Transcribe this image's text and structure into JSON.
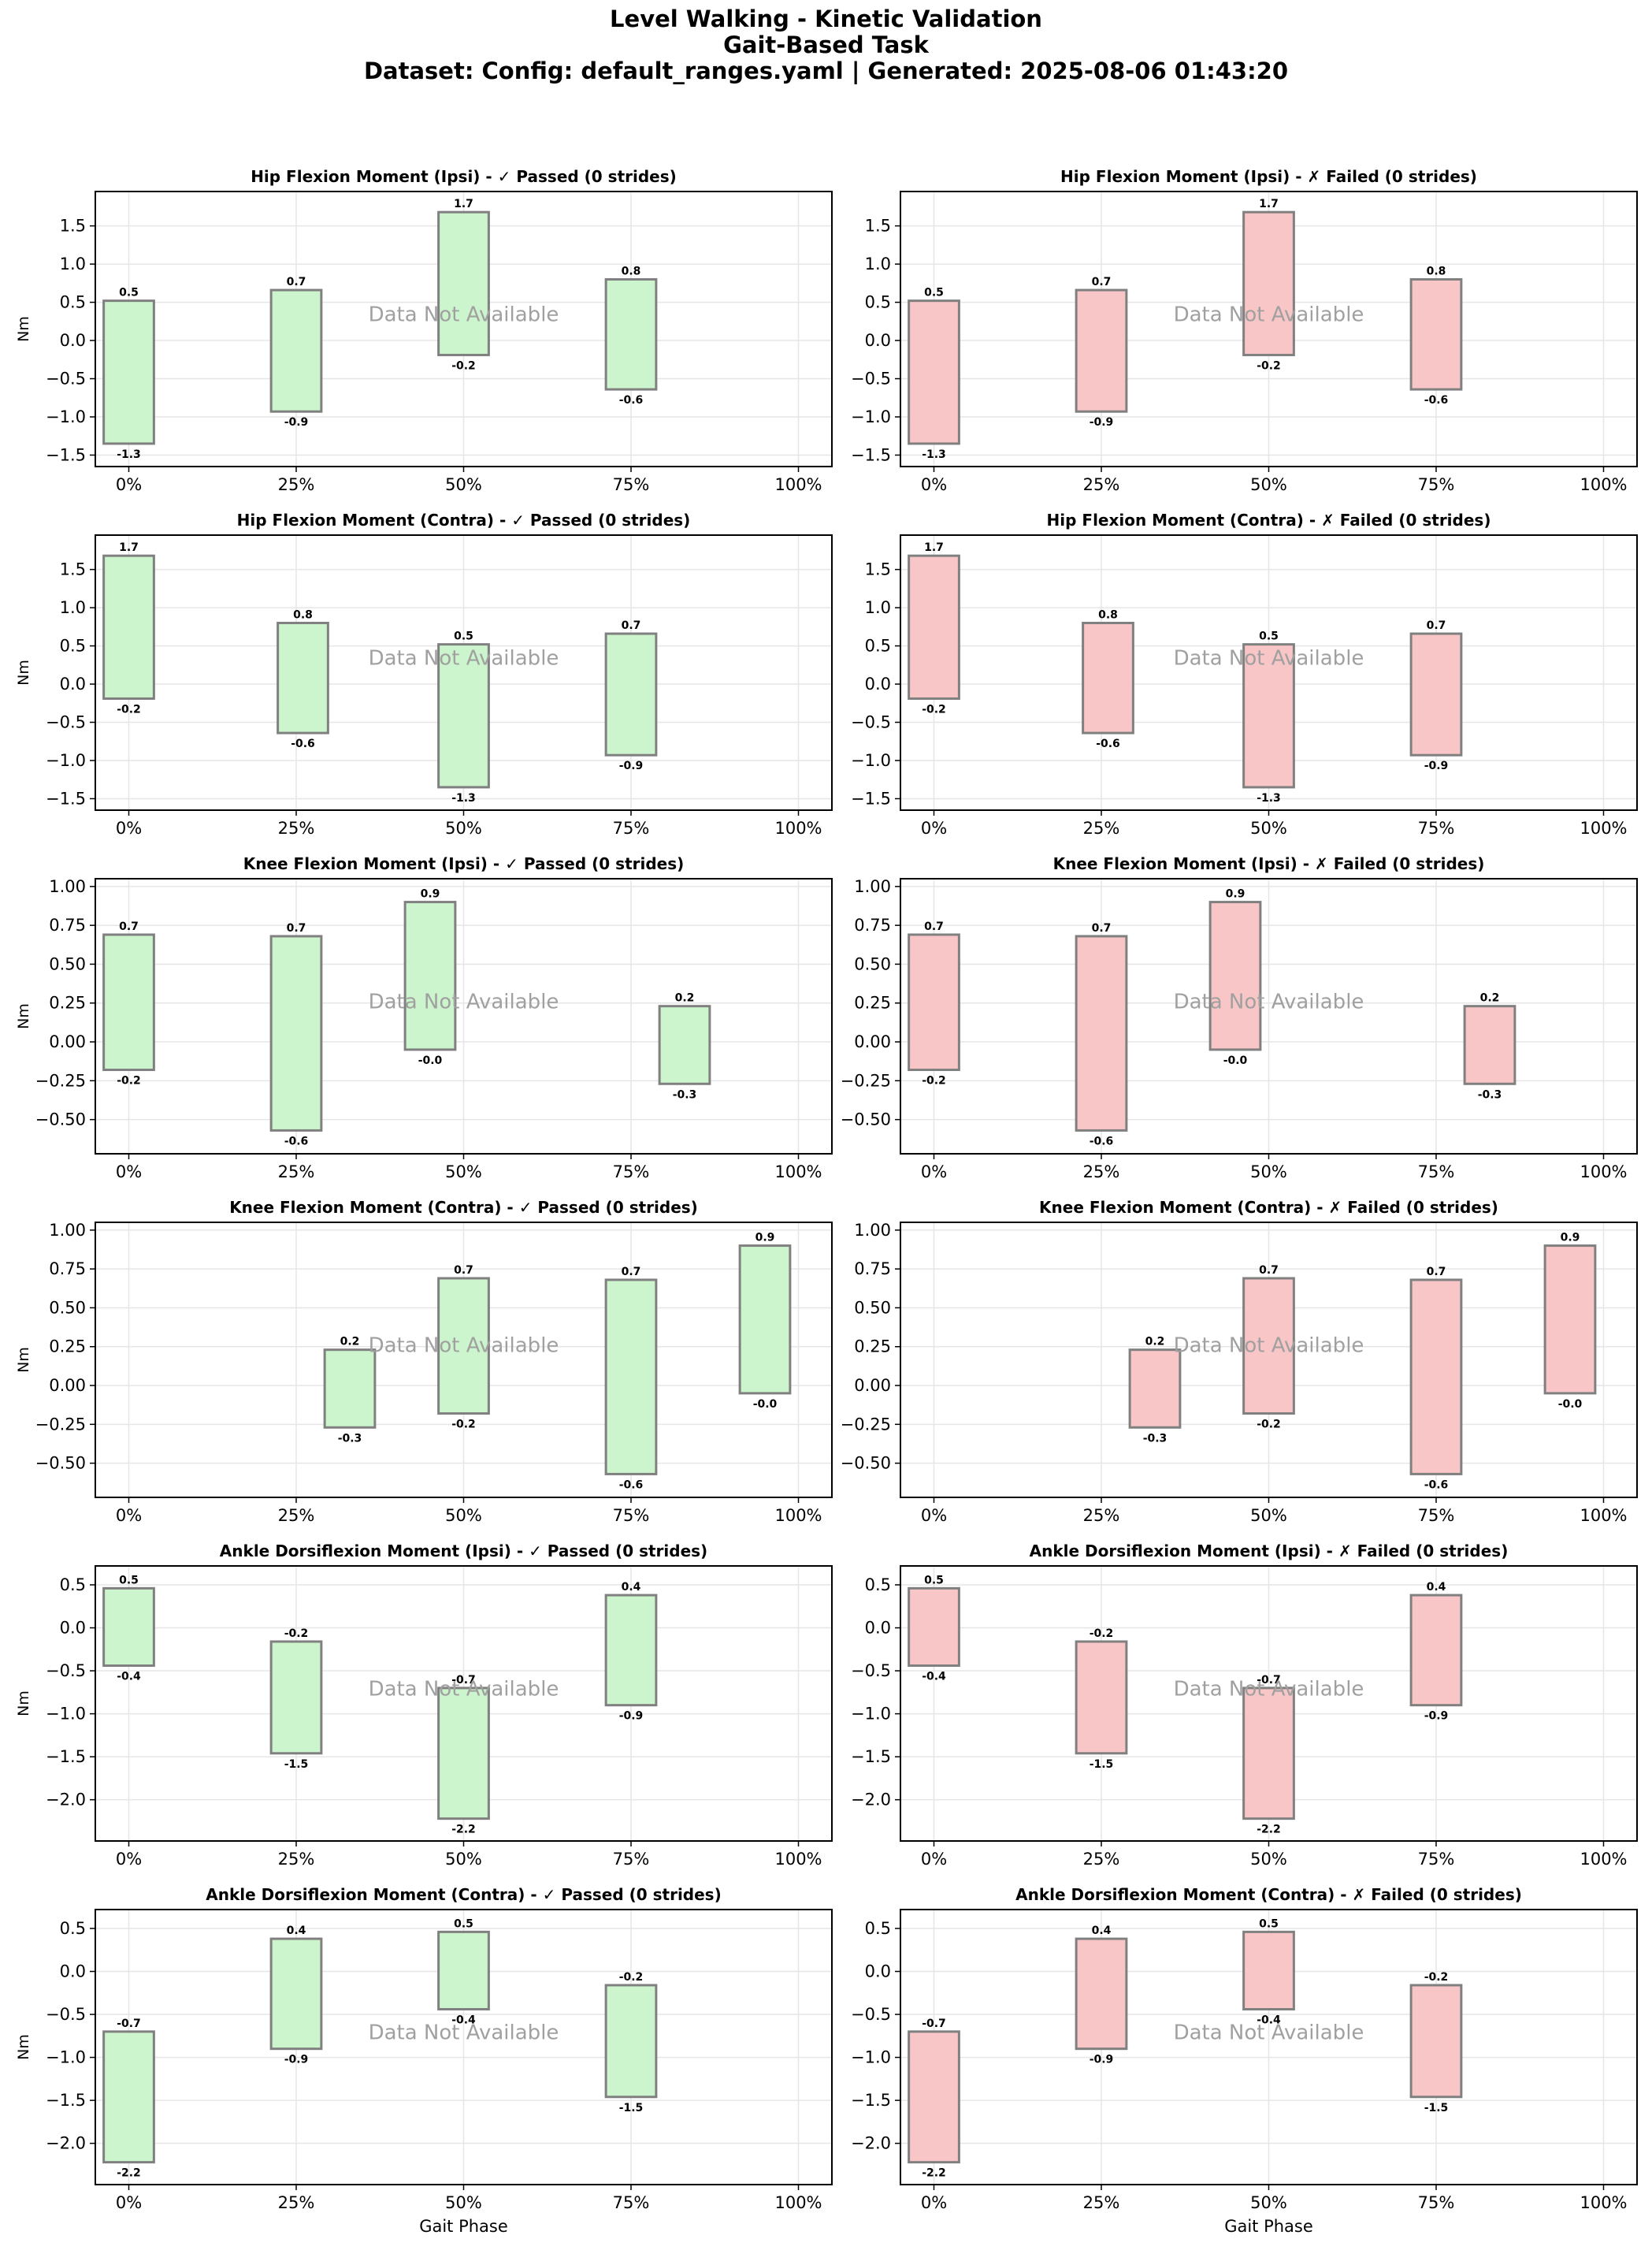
{
  "figure": {
    "title_lines": [
      "Level Walking - Kinetic Validation",
      "Gait-Based Task",
      "Dataset: Config: default_ranges.yaml | Generated: 2025-08-06 01:43:20"
    ],
    "xlabel": "Gait Phase",
    "ylabel": "Nm",
    "placeholder_text": "Data Not Available",
    "x_tick_labels": [
      "0%",
      "25%",
      "50%",
      "75%",
      "100%"
    ]
  },
  "colors": {
    "passed_fill": "#cdf5cd",
    "failed_fill": "#f8c6c6",
    "box_stroke": "#808080",
    "grid": "#e6e6e6",
    "placeholder_text": "#a0a0a0"
  },
  "chart_data": [
    {
      "type": "range-bars",
      "title": "Hip Flexion Moment (Ipsi) - ✓ Passed (0 strides)",
      "status": "passed",
      "ylim": [
        -1.65,
        1.95
      ],
      "yticks": [
        -1.5,
        -1.0,
        -0.5,
        0.0,
        0.5,
        1.0,
        1.5
      ],
      "ytick_labels": [
        "−1.5",
        "−1.0",
        "−0.5",
        "0.0",
        "0.5",
        "1.0",
        "1.5"
      ],
      "ranges": [
        {
          "x": 0,
          "min": -1.35,
          "max": 0.52,
          "min_label": "-1.3",
          "max_label": "0.5"
        },
        {
          "x": 25,
          "min": -0.93,
          "max": 0.66,
          "min_label": "-0.9",
          "max_label": "0.7"
        },
        {
          "x": 50,
          "min": -0.19,
          "max": 1.68,
          "min_label": "-0.2",
          "max_label": "1.7"
        },
        {
          "x": 75,
          "min": -0.64,
          "max": 0.8,
          "min_label": "-0.6",
          "max_label": "0.8"
        }
      ]
    },
    {
      "type": "range-bars",
      "title": "Hip Flexion Moment (Ipsi) - ✗ Failed (0 strides)",
      "status": "failed",
      "ylim": [
        -1.65,
        1.95
      ],
      "yticks": [
        -1.5,
        -1.0,
        -0.5,
        0.0,
        0.5,
        1.0,
        1.5
      ],
      "ytick_labels": [
        "−1.5",
        "−1.0",
        "−0.5",
        "0.0",
        "0.5",
        "1.0",
        "1.5"
      ],
      "ranges": [
        {
          "x": 0,
          "min": -1.35,
          "max": 0.52,
          "min_label": "-1.3",
          "max_label": "0.5"
        },
        {
          "x": 25,
          "min": -0.93,
          "max": 0.66,
          "min_label": "-0.9",
          "max_label": "0.7"
        },
        {
          "x": 50,
          "min": -0.19,
          "max": 1.68,
          "min_label": "-0.2",
          "max_label": "1.7"
        },
        {
          "x": 75,
          "min": -0.64,
          "max": 0.8,
          "min_label": "-0.6",
          "max_label": "0.8"
        }
      ]
    },
    {
      "type": "range-bars",
      "title": "Hip Flexion Moment (Contra) - ✓ Passed (0 strides)",
      "status": "passed",
      "ylim": [
        -1.65,
        1.95
      ],
      "yticks": [
        -1.5,
        -1.0,
        -0.5,
        0.0,
        0.5,
        1.0,
        1.5
      ],
      "ytick_labels": [
        "−1.5",
        "−1.0",
        "−0.5",
        "0.0",
        "0.5",
        "1.0",
        "1.5"
      ],
      "ranges": [
        {
          "x": 0,
          "min": -0.19,
          "max": 1.68,
          "min_label": "-0.2",
          "max_label": "1.7"
        },
        {
          "x": 26,
          "min": -0.64,
          "max": 0.8,
          "min_label": "-0.6",
          "max_label": "0.8"
        },
        {
          "x": 50,
          "min": -1.35,
          "max": 0.52,
          "min_label": "-1.3",
          "max_label": "0.5"
        },
        {
          "x": 75,
          "min": -0.93,
          "max": 0.66,
          "min_label": "-0.9",
          "max_label": "0.7"
        }
      ]
    },
    {
      "type": "range-bars",
      "title": "Hip Flexion Moment (Contra) - ✗ Failed (0 strides)",
      "status": "failed",
      "ylim": [
        -1.65,
        1.95
      ],
      "yticks": [
        -1.5,
        -1.0,
        -0.5,
        0.0,
        0.5,
        1.0,
        1.5
      ],
      "ytick_labels": [
        "−1.5",
        "−1.0",
        "−0.5",
        "0.0",
        "0.5",
        "1.0",
        "1.5"
      ],
      "ranges": [
        {
          "x": 0,
          "min": -0.19,
          "max": 1.68,
          "min_label": "-0.2",
          "max_label": "1.7"
        },
        {
          "x": 26,
          "min": -0.64,
          "max": 0.8,
          "min_label": "-0.6",
          "max_label": "0.8"
        },
        {
          "x": 50,
          "min": -1.35,
          "max": 0.52,
          "min_label": "-1.3",
          "max_label": "0.5"
        },
        {
          "x": 75,
          "min": -0.93,
          "max": 0.66,
          "min_label": "-0.9",
          "max_label": "0.7"
        }
      ]
    },
    {
      "type": "range-bars",
      "title": "Knee Flexion Moment (Ipsi) - ✓ Passed (0 strides)",
      "status": "passed",
      "ylim": [
        -0.72,
        1.05
      ],
      "yticks": [
        -0.5,
        -0.25,
        0.0,
        0.25,
        0.5,
        0.75,
        1.0
      ],
      "ytick_labels": [
        "−0.50",
        "−0.25",
        "0.00",
        "0.25",
        "0.50",
        "0.75",
        "1.00"
      ],
      "ranges": [
        {
          "x": 0,
          "min": -0.18,
          "max": 0.69,
          "min_label": "-0.2",
          "max_label": "0.7"
        },
        {
          "x": 25,
          "min": -0.57,
          "max": 0.68,
          "min_label": "-0.6",
          "max_label": "0.7"
        },
        {
          "x": 45,
          "min": -0.05,
          "max": 0.9,
          "min_label": "-0.0",
          "max_label": "0.9"
        },
        {
          "x": 83,
          "min": -0.27,
          "max": 0.23,
          "min_label": "-0.3",
          "max_label": "0.2"
        }
      ]
    },
    {
      "type": "range-bars",
      "title": "Knee Flexion Moment (Ipsi) - ✗ Failed (0 strides)",
      "status": "failed",
      "ylim": [
        -0.72,
        1.05
      ],
      "yticks": [
        -0.5,
        -0.25,
        0.0,
        0.25,
        0.5,
        0.75,
        1.0
      ],
      "ytick_labels": [
        "−0.50",
        "−0.25",
        "0.00",
        "0.25",
        "0.50",
        "0.75",
        "1.00"
      ],
      "ranges": [
        {
          "x": 0,
          "min": -0.18,
          "max": 0.69,
          "min_label": "-0.2",
          "max_label": "0.7"
        },
        {
          "x": 25,
          "min": -0.57,
          "max": 0.68,
          "min_label": "-0.6",
          "max_label": "0.7"
        },
        {
          "x": 45,
          "min": -0.05,
          "max": 0.9,
          "min_label": "-0.0",
          "max_label": "0.9"
        },
        {
          "x": 83,
          "min": -0.27,
          "max": 0.23,
          "min_label": "-0.3",
          "max_label": "0.2"
        }
      ]
    },
    {
      "type": "range-bars",
      "title": "Knee Flexion Moment (Contra) - ✓ Passed (0 strides)",
      "status": "passed",
      "ylim": [
        -0.72,
        1.05
      ],
      "yticks": [
        -0.5,
        -0.25,
        0.0,
        0.25,
        0.5,
        0.75,
        1.0
      ],
      "ytick_labels": [
        "−0.50",
        "−0.25",
        "0.00",
        "0.25",
        "0.50",
        "0.75",
        "1.00"
      ],
      "ranges": [
        {
          "x": 33,
          "min": -0.27,
          "max": 0.23,
          "min_label": "-0.3",
          "max_label": "0.2"
        },
        {
          "x": 50,
          "min": -0.18,
          "max": 0.69,
          "min_label": "-0.2",
          "max_label": "0.7"
        },
        {
          "x": 75,
          "min": -0.57,
          "max": 0.68,
          "min_label": "-0.6",
          "max_label": "0.7"
        },
        {
          "x": 95,
          "min": -0.05,
          "max": 0.9,
          "min_label": "-0.0",
          "max_label": "0.9"
        }
      ]
    },
    {
      "type": "range-bars",
      "title": "Knee Flexion Moment (Contra) - ✗ Failed (0 strides)",
      "status": "failed",
      "ylim": [
        -0.72,
        1.05
      ],
      "yticks": [
        -0.5,
        -0.25,
        0.0,
        0.25,
        0.5,
        0.75,
        1.0
      ],
      "ytick_labels": [
        "−0.50",
        "−0.25",
        "0.00",
        "0.25",
        "0.50",
        "0.75",
        "1.00"
      ],
      "ranges": [
        {
          "x": 33,
          "min": -0.27,
          "max": 0.23,
          "min_label": "-0.3",
          "max_label": "0.2"
        },
        {
          "x": 50,
          "min": -0.18,
          "max": 0.69,
          "min_label": "-0.2",
          "max_label": "0.7"
        },
        {
          "x": 75,
          "min": -0.57,
          "max": 0.68,
          "min_label": "-0.6",
          "max_label": "0.7"
        },
        {
          "x": 95,
          "min": -0.05,
          "max": 0.9,
          "min_label": "-0.0",
          "max_label": "0.9"
        }
      ]
    },
    {
      "type": "range-bars",
      "title": "Ankle Dorsiflexion Moment (Ipsi) - ✓ Passed (0 strides)",
      "status": "passed",
      "ylim": [
        -2.48,
        0.72
      ],
      "yticks": [
        -2.0,
        -1.5,
        -1.0,
        -0.5,
        0.0,
        0.5
      ],
      "ytick_labels": [
        "−2.0",
        "−1.5",
        "−1.0",
        "−0.5",
        "0.0",
        "0.5"
      ],
      "ranges": [
        {
          "x": 0,
          "min": -0.44,
          "max": 0.46,
          "min_label": "-0.4",
          "max_label": "0.5"
        },
        {
          "x": 25,
          "min": -1.46,
          "max": -0.16,
          "min_label": "-1.5",
          "max_label": "-0.2"
        },
        {
          "x": 50,
          "min": -2.22,
          "max": -0.7,
          "min_label": "-2.2",
          "max_label": "-0.7"
        },
        {
          "x": 75,
          "min": -0.9,
          "max": 0.38,
          "min_label": "-0.9",
          "max_label": "0.4"
        }
      ]
    },
    {
      "type": "range-bars",
      "title": "Ankle Dorsiflexion Moment (Ipsi) - ✗ Failed (0 strides)",
      "status": "failed",
      "ylim": [
        -2.48,
        0.72
      ],
      "yticks": [
        -2.0,
        -1.5,
        -1.0,
        -0.5,
        0.0,
        0.5
      ],
      "ytick_labels": [
        "−2.0",
        "−1.5",
        "−1.0",
        "−0.5",
        "0.0",
        "0.5"
      ],
      "ranges": [
        {
          "x": 0,
          "min": -0.44,
          "max": 0.46,
          "min_label": "-0.4",
          "max_label": "0.5"
        },
        {
          "x": 25,
          "min": -1.46,
          "max": -0.16,
          "min_label": "-1.5",
          "max_label": "-0.2"
        },
        {
          "x": 50,
          "min": -2.22,
          "max": -0.7,
          "min_label": "-2.2",
          "max_label": "-0.7"
        },
        {
          "x": 75,
          "min": -0.9,
          "max": 0.38,
          "min_label": "-0.9",
          "max_label": "0.4"
        }
      ]
    },
    {
      "type": "range-bars",
      "title": "Ankle Dorsiflexion Moment (Contra) - ✓ Passed (0 strides)",
      "status": "passed",
      "ylim": [
        -2.48,
        0.72
      ],
      "yticks": [
        -2.0,
        -1.5,
        -1.0,
        -0.5,
        0.0,
        0.5
      ],
      "ytick_labels": [
        "−2.0",
        "−1.5",
        "−1.0",
        "−0.5",
        "0.0",
        "0.5"
      ],
      "ranges": [
        {
          "x": 0,
          "min": -2.22,
          "max": -0.7,
          "min_label": "-2.2",
          "max_label": "-0.7"
        },
        {
          "x": 25,
          "min": -0.9,
          "max": 0.38,
          "min_label": "-0.9",
          "max_label": "0.4"
        },
        {
          "x": 50,
          "min": -0.44,
          "max": 0.46,
          "min_label": "-0.4",
          "max_label": "0.5"
        },
        {
          "x": 75,
          "min": -1.46,
          "max": -0.16,
          "min_label": "-1.5",
          "max_label": "-0.2"
        }
      ]
    },
    {
      "type": "range-bars",
      "title": "Ankle Dorsiflexion Moment (Contra) - ✗ Failed (0 strides)",
      "status": "failed",
      "ylim": [
        -2.48,
        0.72
      ],
      "yticks": [
        -2.0,
        -1.5,
        -1.0,
        -0.5,
        0.0,
        0.5
      ],
      "ytick_labels": [
        "−2.0",
        "−1.5",
        "−1.0",
        "−0.5",
        "0.0",
        "0.5"
      ],
      "ranges": [
        {
          "x": 0,
          "min": -2.22,
          "max": -0.7,
          "min_label": "-2.2",
          "max_label": "-0.7"
        },
        {
          "x": 25,
          "min": -0.9,
          "max": 0.38,
          "min_label": "-0.9",
          "max_label": "0.4"
        },
        {
          "x": 50,
          "min": -0.44,
          "max": 0.46,
          "min_label": "-0.4",
          "max_label": "0.5"
        },
        {
          "x": 75,
          "min": -1.46,
          "max": -0.16,
          "min_label": "-1.5",
          "max_label": "-0.2"
        }
      ]
    }
  ]
}
